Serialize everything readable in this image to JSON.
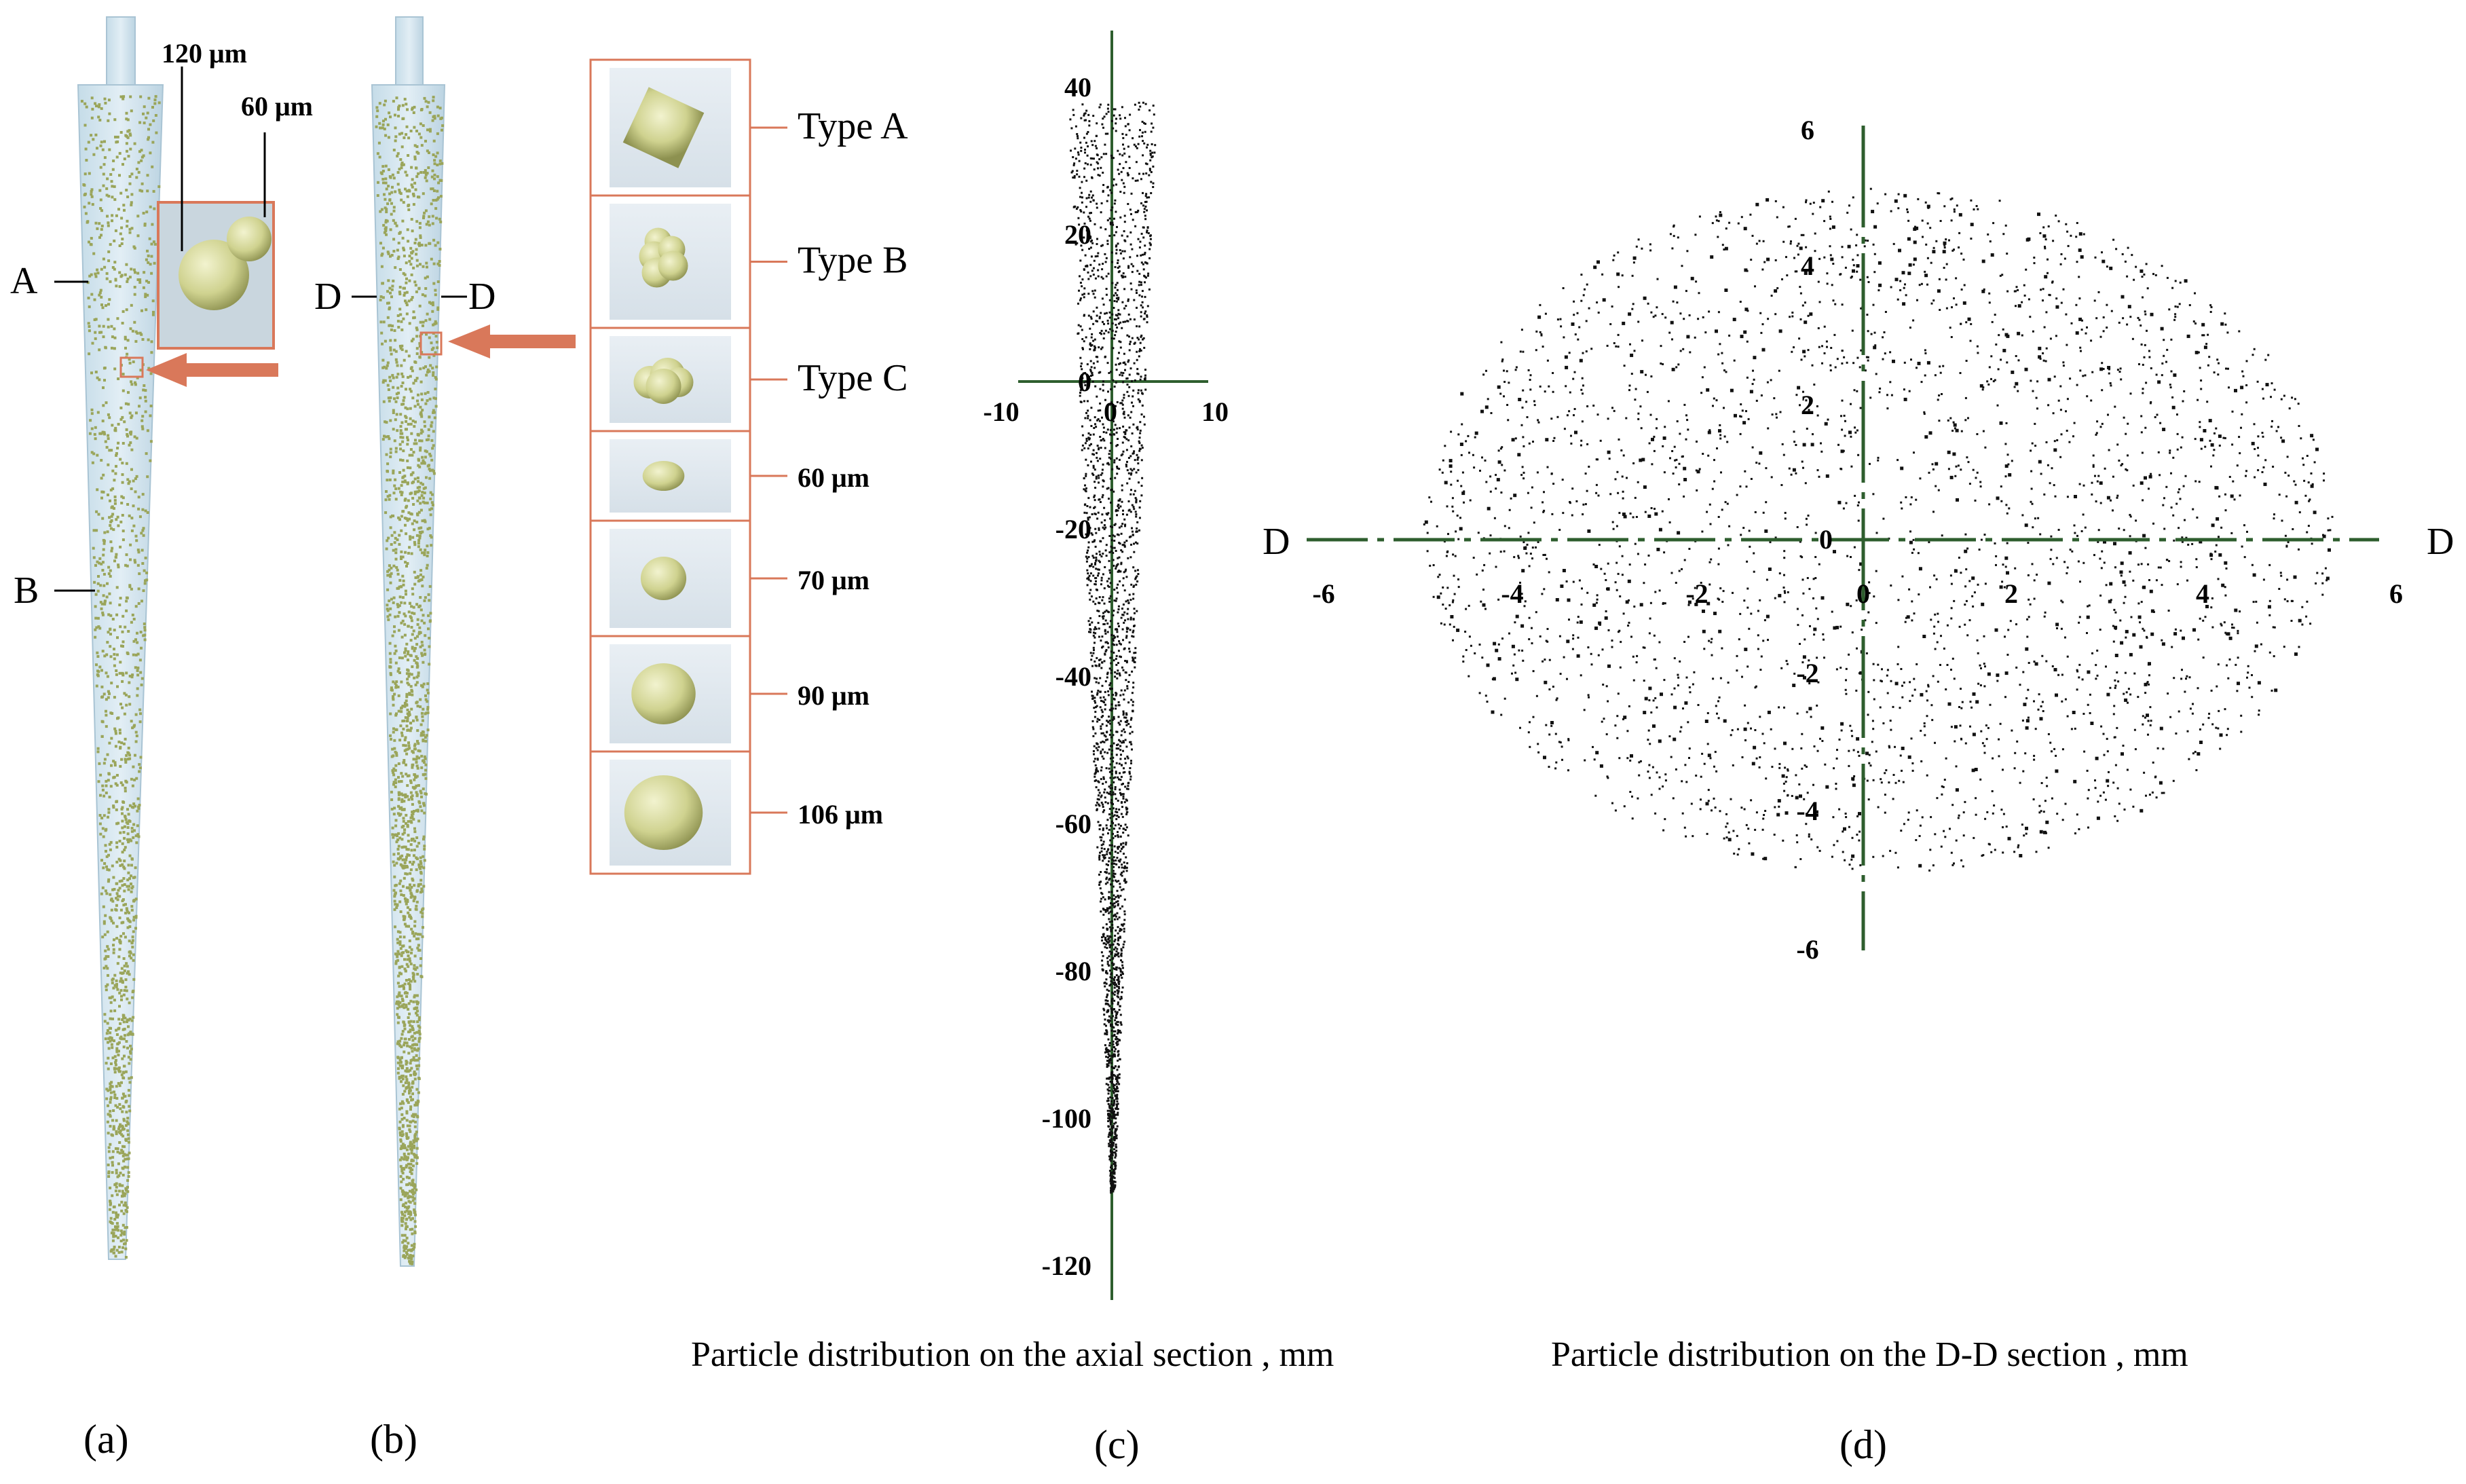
{
  "panel_a": {
    "letter": "(a)",
    "line_labels": {
      "A": "A",
      "B": "B"
    },
    "callout_big": "120 μm",
    "callout_small": "60 μm"
  },
  "panel_b": {
    "letter": "(b)",
    "section_left": "D",
    "section_right": "D",
    "legend_items": [
      "Type A",
      "Type B",
      "Type C",
      "60 μm",
      "70 μm",
      "90 μm",
      "106 μm"
    ]
  },
  "panel_c": {
    "letter": "(c)",
    "caption": "Particle distribution on the axial section , mm",
    "y_ticks": [
      "40",
      "20",
      "0",
      "-20",
      "-40",
      "-60",
      "-80",
      "-100",
      "-120"
    ],
    "x_ticks": [
      "-10",
      "0",
      "10"
    ]
  },
  "panel_d": {
    "letter": "(d)",
    "caption": "Particle distribution on the D-D section , mm",
    "x_ticks": [
      "-6",
      "-4",
      "-2",
      "0",
      "2",
      "4",
      "6"
    ],
    "y_ticks": [
      "6",
      "4",
      "2",
      "0",
      "-2",
      "-4",
      "-6"
    ],
    "section_left": "D",
    "section_right": "D"
  },
  "colors": {
    "cone_fill": "#cfe3ee",
    "particle": "#9aa55a",
    "callout": "#d9785a",
    "arrow": "#d9785a",
    "axis": "#2e5e2e",
    "dots": "#111111",
    "sphere": "#d9dba3"
  }
}
